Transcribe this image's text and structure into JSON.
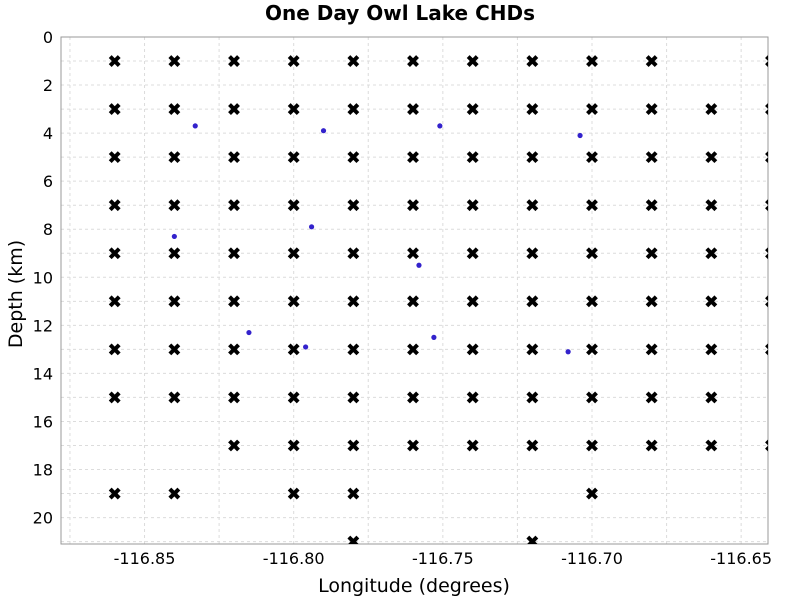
{
  "chart_data": {
    "type": "scatter",
    "title": "One Day Owl Lake CHDs",
    "xlabel": "Longitude (degrees)",
    "ylabel": "Depth (km)",
    "xlim": [
      -116.878,
      -116.641
    ],
    "ylim": [
      0,
      21.1
    ],
    "y_inverted": true,
    "x_ticks": [
      -116.85,
      -116.8,
      -116.75,
      -116.7,
      -116.65
    ],
    "x_tick_labels": [
      "-116.85",
      "-116.80",
      "-116.75",
      "-116.70",
      "-116.65"
    ],
    "y_ticks": [
      0,
      2,
      4,
      6,
      8,
      10,
      12,
      14,
      16,
      18,
      20
    ],
    "y_tick_labels": [
      "0",
      "2",
      "4",
      "6",
      "8",
      "10",
      "12",
      "14",
      "16",
      "18",
      "20"
    ],
    "grid": true,
    "legend": "none",
    "series": [
      {
        "marker": "x",
        "color": "#000000",
        "points": [
          [
            -116.86,
            1
          ],
          [
            -116.84,
            1
          ],
          [
            -116.82,
            1
          ],
          [
            -116.8,
            1
          ],
          [
            -116.78,
            1
          ],
          [
            -116.76,
            1
          ],
          [
            -116.74,
            1
          ],
          [
            -116.72,
            1
          ],
          [
            -116.7,
            1
          ],
          [
            -116.68,
            1
          ],
          [
            -116.64,
            1
          ],
          [
            -116.86,
            3
          ],
          [
            -116.84,
            3
          ],
          [
            -116.82,
            3
          ],
          [
            -116.8,
            3
          ],
          [
            -116.78,
            3
          ],
          [
            -116.76,
            3
          ],
          [
            -116.74,
            3
          ],
          [
            -116.72,
            3
          ],
          [
            -116.7,
            3
          ],
          [
            -116.68,
            3
          ],
          [
            -116.66,
            3
          ],
          [
            -116.64,
            3
          ],
          [
            -116.86,
            5
          ],
          [
            -116.84,
            5
          ],
          [
            -116.82,
            5
          ],
          [
            -116.8,
            5
          ],
          [
            -116.78,
            5
          ],
          [
            -116.76,
            5
          ],
          [
            -116.74,
            5
          ],
          [
            -116.72,
            5
          ],
          [
            -116.7,
            5
          ],
          [
            -116.68,
            5
          ],
          [
            -116.66,
            5
          ],
          [
            -116.64,
            5
          ],
          [
            -116.86,
            7
          ],
          [
            -116.84,
            7
          ],
          [
            -116.82,
            7
          ],
          [
            -116.8,
            7
          ],
          [
            -116.78,
            7
          ],
          [
            -116.76,
            7
          ],
          [
            -116.74,
            7
          ],
          [
            -116.72,
            7
          ],
          [
            -116.7,
            7
          ],
          [
            -116.68,
            7
          ],
          [
            -116.66,
            7
          ],
          [
            -116.64,
            7
          ],
          [
            -116.86,
            9
          ],
          [
            -116.84,
            9
          ],
          [
            -116.82,
            9
          ],
          [
            -116.8,
            9
          ],
          [
            -116.78,
            9
          ],
          [
            -116.76,
            9
          ],
          [
            -116.74,
            9
          ],
          [
            -116.72,
            9
          ],
          [
            -116.7,
            9
          ],
          [
            -116.68,
            9
          ],
          [
            -116.66,
            9
          ],
          [
            -116.64,
            9
          ],
          [
            -116.86,
            11
          ],
          [
            -116.84,
            11
          ],
          [
            -116.82,
            11
          ],
          [
            -116.8,
            11
          ],
          [
            -116.78,
            11
          ],
          [
            -116.76,
            11
          ],
          [
            -116.74,
            11
          ],
          [
            -116.72,
            11
          ],
          [
            -116.7,
            11
          ],
          [
            -116.68,
            11
          ],
          [
            -116.66,
            11
          ],
          [
            -116.64,
            11
          ],
          [
            -116.86,
            13
          ],
          [
            -116.84,
            13
          ],
          [
            -116.82,
            13
          ],
          [
            -116.8,
            13
          ],
          [
            -116.78,
            13
          ],
          [
            -116.76,
            13
          ],
          [
            -116.74,
            13
          ],
          [
            -116.72,
            13
          ],
          [
            -116.7,
            13
          ],
          [
            -116.68,
            13
          ],
          [
            -116.66,
            13
          ],
          [
            -116.64,
            13
          ],
          [
            -116.86,
            15
          ],
          [
            -116.84,
            15
          ],
          [
            -116.82,
            15
          ],
          [
            -116.8,
            15
          ],
          [
            -116.78,
            15
          ],
          [
            -116.76,
            15
          ],
          [
            -116.74,
            15
          ],
          [
            -116.72,
            15
          ],
          [
            -116.7,
            15
          ],
          [
            -116.68,
            15
          ],
          [
            -116.66,
            15
          ],
          [
            -116.82,
            17
          ],
          [
            -116.8,
            17
          ],
          [
            -116.78,
            17
          ],
          [
            -116.76,
            17
          ],
          [
            -116.74,
            17
          ],
          [
            -116.72,
            17
          ],
          [
            -116.7,
            17
          ],
          [
            -116.68,
            17
          ],
          [
            -116.66,
            17
          ],
          [
            -116.64,
            17
          ],
          [
            -116.86,
            19
          ],
          [
            -116.84,
            19
          ],
          [
            -116.8,
            19
          ],
          [
            -116.78,
            19
          ],
          [
            -116.7,
            19
          ],
          [
            -116.78,
            21
          ],
          [
            -116.72,
            21
          ]
        ]
      },
      {
        "marker": "dot",
        "color": "#3322cc",
        "points": [
          [
            -116.833,
            3.7
          ],
          [
            -116.79,
            3.9
          ],
          [
            -116.751,
            3.7
          ],
          [
            -116.704,
            4.1
          ],
          [
            -116.84,
            8.3
          ],
          [
            -116.794,
            7.9
          ],
          [
            -116.758,
            9.5
          ],
          [
            -116.815,
            12.3
          ],
          [
            -116.796,
            12.9
          ],
          [
            -116.753,
            12.5
          ],
          [
            -116.708,
            13.1
          ]
        ]
      }
    ]
  }
}
